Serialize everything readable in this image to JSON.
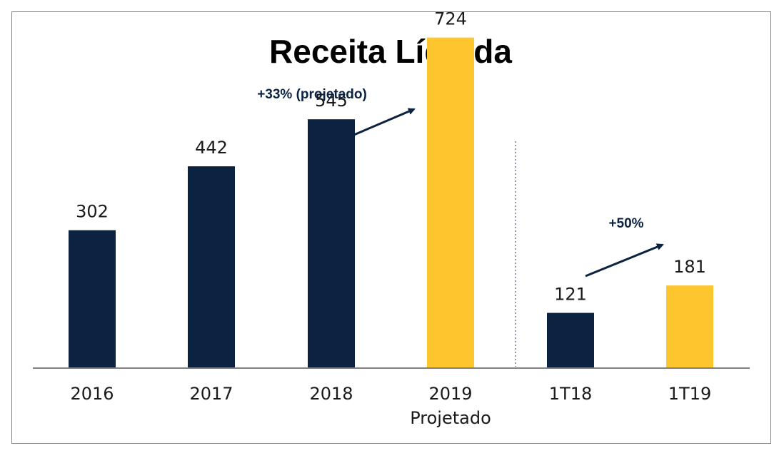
{
  "chart_data": {
    "type": "bar",
    "title": "Receita Líquida",
    "categories": [
      "2016",
      "2017",
      "2018",
      "2019",
      "1T18",
      "1T19"
    ],
    "category_sublabels": [
      "",
      "",
      "",
      "Projetado",
      "",
      ""
    ],
    "values": [
      302,
      442,
      545,
      724,
      121,
      181
    ],
    "data_labels": [
      "302",
      "442",
      "545",
      "724",
      "121",
      "181"
    ],
    "bar_colors": [
      "#0b2240",
      "#0b2240",
      "#0b2240",
      "#fdc52e",
      "#0b2240",
      "#fdc52e"
    ],
    "ylim": [
      0,
      750
    ],
    "grid": false,
    "legend": "none",
    "annotations": [
      {
        "text": "+33% (projetado)",
        "from_category": "2018",
        "to_category": "2019"
      },
      {
        "text": "+50%",
        "from_category": "1T18",
        "to_category": "1T19"
      }
    ],
    "separator_after_category": "2019"
  },
  "colors": {
    "actual": "#0b2240",
    "projected": "#fdc52e",
    "axis": "#808080",
    "frame": "#7f7f7f"
  }
}
